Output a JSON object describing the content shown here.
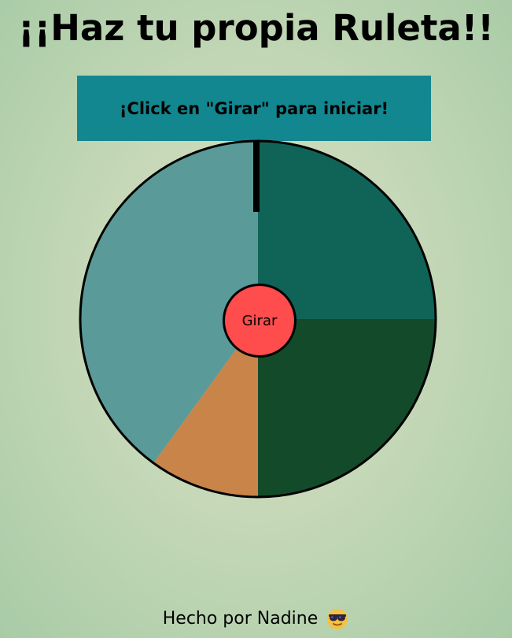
{
  "header": {
    "title": "¡¡Haz tu propia Ruleta!!"
  },
  "banner": {
    "message": "¡Click en \"Girar\" para iniciar!",
    "color": "#12878f"
  },
  "wheel": {
    "segments": [
      {
        "fraction": 0.25,
        "color": "#0f6457"
      },
      {
        "fraction": 0.25,
        "color": "#134b2a"
      },
      {
        "fraction": 0.1,
        "color": "#c9844a"
      },
      {
        "fraction": 0.4,
        "color": "#5a9a98"
      }
    ],
    "spin_button": {
      "label": "Girar",
      "color": "#ff4c4c"
    }
  },
  "footer": {
    "text": "Hecho por Nadine",
    "icon": "sunglasses-face-icon"
  }
}
